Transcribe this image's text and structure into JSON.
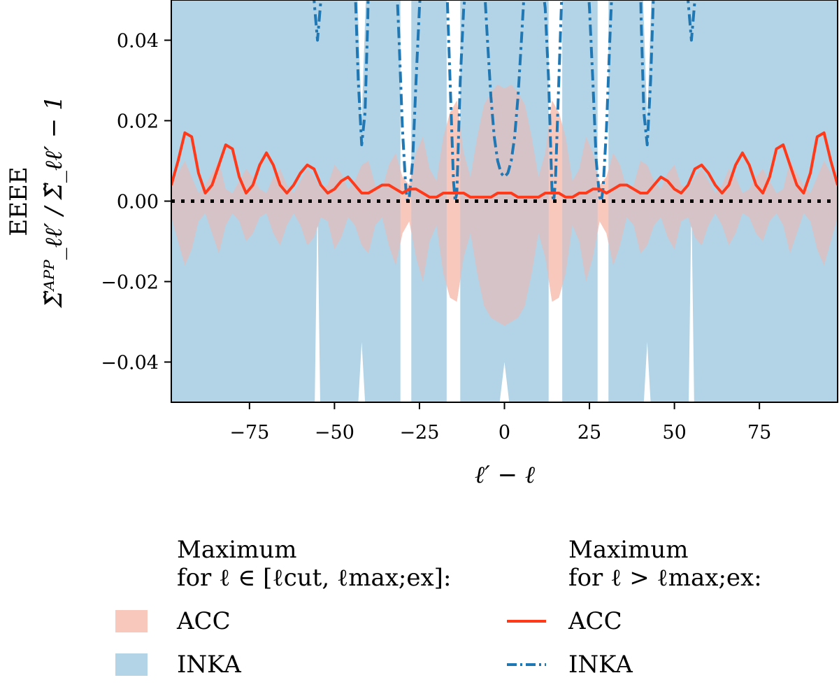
{
  "chart_data": {
    "type": "line",
    "title": "",
    "xlabel": "ℓ′ − ℓ",
    "ylabel_top": "EEEE",
    "ylabel": "Σ̃ᴬᴾᴾ_ℓℓ′ / Σ̃_ℓℓ′ − 1",
    "xlim": [
      -98,
      98
    ],
    "ylim": [
      -0.05,
      0.05
    ],
    "xticks": [
      -75,
      -50,
      -25,
      0,
      25,
      50,
      75
    ],
    "xtick_labels": [
      "−75",
      "−50",
      "−25",
      "0",
      "25",
      "50",
      "75"
    ],
    "yticks": [
      -0.04,
      -0.02,
      0.0,
      0.02,
      0.04
    ],
    "ytick_labels": [
      "−0.04",
      "−0.02",
      "0.00",
      "0.02",
      "0.04"
    ],
    "reference_line": {
      "y": 0.0,
      "style": "dotted",
      "color": "#000000"
    },
    "series": [
      {
        "name": "ACC (ℓ ∈ [ℓcut, ℓmax;ex]) band",
        "kind": "band",
        "color": "#f9c8bd",
        "x": [
          -98,
          -96,
          -94,
          -92,
          -90,
          -88,
          -86,
          -84,
          -82,
          -80,
          -78,
          -76,
          -74,
          -72,
          -70,
          -68,
          -66,
          -64,
          -62,
          -60,
          -58,
          -56,
          -54,
          -52,
          -50,
          -48,
          -46,
          -44,
          -42,
          -40,
          -38,
          -36,
          -34,
          -32,
          -30,
          -28,
          -26,
          -24,
          -22,
          -20,
          -18,
          -16,
          -14,
          -12,
          -10,
          -8,
          -6,
          -4,
          -2,
          0,
          2,
          4,
          6,
          8,
          10,
          12,
          14,
          16,
          18,
          20,
          22,
          24,
          26,
          28,
          30,
          32,
          34,
          36,
          38,
          40,
          42,
          44,
          46,
          48,
          50,
          52,
          54,
          56,
          58,
          60,
          62,
          64,
          66,
          68,
          70,
          72,
          74,
          76,
          78,
          80,
          82,
          84,
          86,
          88,
          90,
          92,
          94,
          96,
          98
        ],
        "upper": [
          0.004,
          0.007,
          0.01,
          0.006,
          0.002,
          0.004,
          0.007,
          0.01,
          0.003,
          0.002,
          0.005,
          0.008,
          0.006,
          0.003,
          0.002,
          0.006,
          0.008,
          0.004,
          0.002,
          0.005,
          0.008,
          0.006,
          0.003,
          0.004,
          0.009,
          0.007,
          0.003,
          0.005,
          0.009,
          0.01,
          0.004,
          0.003,
          0.009,
          0.012,
          0.006,
          0.004,
          0.012,
          0.016,
          0.008,
          0.005,
          0.016,
          0.022,
          0.025,
          0.012,
          0.006,
          0.016,
          0.024,
          0.027,
          0.029,
          0.028,
          0.029,
          0.027,
          0.024,
          0.016,
          0.006,
          0.012,
          0.025,
          0.022,
          0.016,
          0.005,
          0.008,
          0.016,
          0.012,
          0.004,
          0.006,
          0.012,
          0.009,
          0.003,
          0.004,
          0.01,
          0.009,
          0.005,
          0.003,
          0.007,
          0.009,
          0.004,
          0.003,
          0.006,
          0.008,
          0.005,
          0.002,
          0.004,
          0.008,
          0.006,
          0.002,
          0.003,
          0.006,
          0.008,
          0.005,
          0.002,
          0.003,
          0.01,
          0.007,
          0.004,
          0.002,
          0.006,
          0.01,
          0.007,
          0.004
        ],
        "lower": [
          -0.004,
          -0.01,
          -0.016,
          -0.012,
          -0.005,
          -0.003,
          -0.008,
          -0.013,
          -0.006,
          -0.003,
          -0.005,
          -0.01,
          -0.008,
          -0.004,
          -0.003,
          -0.008,
          -0.011,
          -0.006,
          -0.003,
          -0.006,
          -0.011,
          -0.009,
          -0.004,
          -0.005,
          -0.012,
          -0.009,
          -0.004,
          -0.006,
          -0.011,
          -0.013,
          -0.006,
          -0.004,
          -0.011,
          -0.016,
          -0.008,
          -0.005,
          -0.014,
          -0.02,
          -0.01,
          -0.006,
          -0.018,
          -0.024,
          -0.025,
          -0.014,
          -0.008,
          -0.018,
          -0.026,
          -0.029,
          -0.03,
          -0.031,
          -0.03,
          -0.029,
          -0.026,
          -0.018,
          -0.008,
          -0.014,
          -0.025,
          -0.024,
          -0.018,
          -0.006,
          -0.01,
          -0.02,
          -0.014,
          -0.005,
          -0.008,
          -0.016,
          -0.011,
          -0.004,
          -0.006,
          -0.013,
          -0.011,
          -0.006,
          -0.004,
          -0.009,
          -0.012,
          -0.005,
          -0.004,
          -0.009,
          -0.011,
          -0.006,
          -0.003,
          -0.006,
          -0.011,
          -0.008,
          -0.003,
          -0.004,
          -0.008,
          -0.01,
          -0.005,
          -0.003,
          -0.006,
          -0.013,
          -0.008,
          -0.003,
          -0.005,
          -0.012,
          -0.016,
          -0.01,
          -0.004
        ]
      },
      {
        "name": "INKA (ℓ ∈ [ℓcut, ℓmax;ex]) band",
        "kind": "band",
        "color": "#b3d4e6",
        "note": "light-blue band fills most of the panel, with narrow white gaps around ±15, ±28, ±42, ±55",
        "gaps": [
          {
            "center": -55,
            "halfwidth": 0.8,
            "from": "bottom",
            "depth": 0.0
          },
          {
            "center": -42,
            "halfwidth": 1.2,
            "from": "top",
            "depth": 0.02
          },
          {
            "center": -42,
            "halfwidth": 1.0,
            "from": "bottom",
            "depth": -0.035
          },
          {
            "center": -29,
            "halfwidth": 1.6,
            "from": "both",
            "depth": 0.0
          },
          {
            "center": -15,
            "halfwidth": 2.0,
            "from": "both",
            "depth": 0.0
          },
          {
            "center": 0,
            "halfwidth": 1.4,
            "from": "bottom",
            "depth": -0.04
          },
          {
            "center": 15,
            "halfwidth": 2.0,
            "from": "both",
            "depth": 0.0
          },
          {
            "center": 29,
            "halfwidth": 1.6,
            "from": "both",
            "depth": 0.0
          },
          {
            "center": 42,
            "halfwidth": 1.2,
            "from": "top",
            "depth": 0.02
          },
          {
            "center": 42,
            "halfwidth": 1.0,
            "from": "bottom",
            "depth": -0.035
          },
          {
            "center": 55,
            "halfwidth": 0.8,
            "from": "bottom",
            "depth": 0.0
          }
        ]
      },
      {
        "name": "ACC (ℓ > ℓmax;ex)",
        "kind": "line",
        "color": "#ff3a1a",
        "linestyle": "solid",
        "x": [
          -98,
          -96,
          -94,
          -92,
          -90,
          -88,
          -86,
          -84,
          -82,
          -80,
          -78,
          -76,
          -74,
          -72,
          -70,
          -68,
          -66,
          -64,
          -62,
          -60,
          -58,
          -56,
          -54,
          -52,
          -50,
          -48,
          -46,
          -44,
          -42,
          -40,
          -38,
          -36,
          -34,
          -32,
          -30,
          -28,
          -26,
          -24,
          -22,
          -20,
          -18,
          -16,
          -14,
          -12,
          -10,
          -8,
          -6,
          -4,
          -2,
          0,
          2,
          4,
          6,
          8,
          10,
          12,
          14,
          16,
          18,
          20,
          22,
          24,
          26,
          28,
          30,
          32,
          34,
          36,
          38,
          40,
          42,
          44,
          46,
          48,
          50,
          52,
          54,
          56,
          58,
          60,
          62,
          64,
          66,
          68,
          70,
          72,
          74,
          76,
          78,
          80,
          82,
          84,
          86,
          88,
          90,
          92,
          94,
          96,
          98
        ],
        "values": [
          0.004,
          0.01,
          0.017,
          0.016,
          0.007,
          0.002,
          0.004,
          0.009,
          0.014,
          0.013,
          0.006,
          0.002,
          0.004,
          0.009,
          0.012,
          0.009,
          0.004,
          0.002,
          0.004,
          0.007,
          0.009,
          0.008,
          0.004,
          0.002,
          0.003,
          0.005,
          0.006,
          0.004,
          0.002,
          0.002,
          0.003,
          0.004,
          0.004,
          0.003,
          0.002,
          0.003,
          0.003,
          0.002,
          0.001,
          0.001,
          0.002,
          0.002,
          0.002,
          0.002,
          0.001,
          0.001,
          0.001,
          0.001,
          0.002,
          0.002,
          0.002,
          0.001,
          0.001,
          0.001,
          0.001,
          0.002,
          0.002,
          0.002,
          0.001,
          0.001,
          0.002,
          0.002,
          0.003,
          0.003,
          0.002,
          0.003,
          0.004,
          0.004,
          0.003,
          0.002,
          0.002,
          0.004,
          0.006,
          0.005,
          0.003,
          0.002,
          0.004,
          0.008,
          0.009,
          0.007,
          0.004,
          0.002,
          0.004,
          0.009,
          0.012,
          0.009,
          0.004,
          0.002,
          0.006,
          0.013,
          0.014,
          0.009,
          0.004,
          0.002,
          0.007,
          0.016,
          0.017,
          0.01,
          0.004
        ]
      },
      {
        "name": "INKA (ℓ > ℓmax;ex)",
        "kind": "line",
        "color": "#1f77b4",
        "linestyle": "dashdot",
        "segments": [
          {
            "x": [
              -56.2,
              -55.5,
              -55,
              -54.5,
              -53.8
            ],
            "values": [
              0.052,
              0.045,
              0.04,
              0.045,
              0.052
            ]
          },
          {
            "x": [
              -44,
              -43,
              -42,
              -41,
              -40.2,
              -40
            ],
            "values": [
              0.055,
              0.03,
              0.014,
              0.022,
              0.045,
              0.055
            ]
          },
          {
            "x": [
              -32,
              -31,
              -30,
              -29,
              -28.5,
              -28,
              -27,
              -26,
              -25,
              -24.5
            ],
            "values": [
              0.06,
              0.04,
              0.018,
              0.003,
              0.0,
              0.001,
              0.01,
              0.03,
              0.048,
              0.055
            ]
          },
          {
            "x": [
              -17,
              -16,
              -15,
              -14.5,
              -14,
              -13,
              -12,
              -11
            ],
            "values": [
              0.055,
              0.03,
              0.005,
              0.0,
              0.002,
              0.03,
              0.048,
              0.055
            ]
          },
          {
            "x": [
              -6,
              -5,
              -4,
              -3,
              -2,
              -1,
              0,
              1,
              2,
              3,
              4,
              5,
              6
            ],
            "values": [
              0.055,
              0.04,
              0.026,
              0.016,
              0.01,
              0.007,
              0.006,
              0.007,
              0.01,
              0.016,
              0.026,
              0.04,
              0.055
            ]
          },
          {
            "x": [
              11,
              12,
              13,
              14,
              14.5,
              15,
              16,
              17
            ],
            "values": [
              0.055,
              0.048,
              0.03,
              0.002,
              0.0,
              0.005,
              0.03,
              0.055
            ]
          },
          {
            "x": [
              24.5,
              25,
              26,
              27,
              28,
              28.5,
              29,
              30,
              31,
              32
            ],
            "values": [
              0.055,
              0.048,
              0.03,
              0.01,
              0.001,
              0.0,
              0.003,
              0.018,
              0.04,
              0.06
            ]
          },
          {
            "x": [
              40,
              40.2,
              41,
              42,
              43,
              44
            ],
            "values": [
              0.055,
              0.045,
              0.022,
              0.014,
              0.03,
              0.055
            ]
          },
          {
            "x": [
              53.8,
              54.5,
              55,
              55.5,
              56.2
            ],
            "values": [
              0.052,
              0.045,
              0.04,
              0.045,
              0.052
            ]
          }
        ]
      }
    ],
    "legend": {
      "placement": "below",
      "group_left_title_1": "Maximum",
      "group_left_title_2": "for ℓ ∈ [ℓcut, ℓmax;ex]:",
      "group_right_title_1": "Maximum",
      "group_right_title_2": "for ℓ > ℓmax;ex:",
      "left_entries": [
        "ACC",
        "INKA"
      ],
      "right_entries": [
        "ACC",
        "INKA"
      ]
    }
  },
  "colors": {
    "acc_band": "#f9c8bd",
    "inka_band": "#b3d4e6",
    "overlap_band": "#d6c3c7",
    "acc_line": "#ff3a1a",
    "inka_line": "#1f77b4"
  }
}
